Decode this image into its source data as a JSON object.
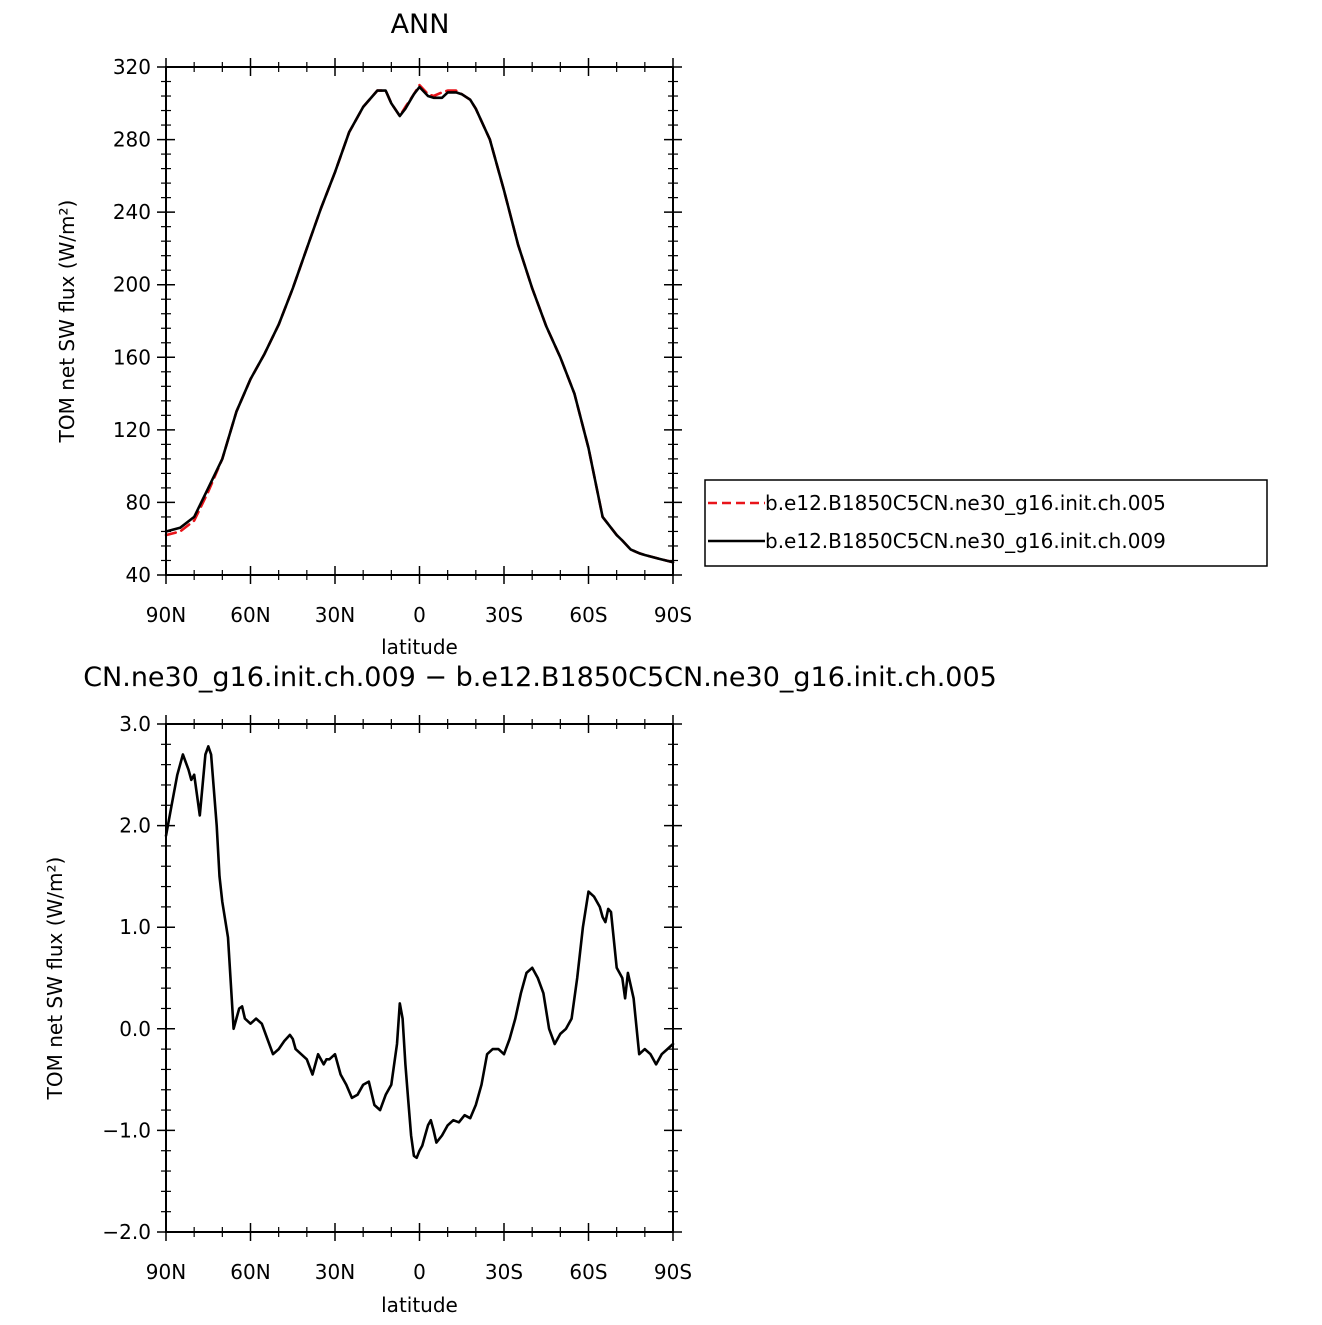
{
  "chart_data": [
    {
      "type": "line",
      "title": "ANN",
      "xlabel": "latitude",
      "ylabel": "TOM net SW flux (W/m²)",
      "ylim": [
        40,
        320
      ],
      "xlim": [
        90,
        -90
      ],
      "x_tick_values": [
        90,
        60,
        30,
        0,
        -30,
        -60,
        -90
      ],
      "x_tick_labels": [
        "90N",
        "60N",
        "30N",
        "0",
        "30S",
        "60S",
        "90S"
      ],
      "y_tick_values": [
        40,
        80,
        120,
        160,
        200,
        240,
        280,
        320
      ],
      "y_tick_labels": [
        "40",
        "80",
        "120",
        "160",
        "200",
        "240",
        "280",
        "320"
      ],
      "grid": false,
      "legend": "right",
      "series": [
        {
          "name": "b.e12.B1850C5CN.ne30_g16.init.ch.005",
          "color": "#e8141a",
          "dash": "dashed",
          "x": [
            90,
            85,
            80,
            75,
            70,
            65,
            60,
            55,
            50,
            45,
            40,
            35,
            30,
            25,
            20,
            15,
            12,
            10,
            7,
            5,
            2,
            0,
            -3,
            -5,
            -8,
            -10,
            -13,
            -15,
            -18,
            -20,
            -25,
            -30,
            -35,
            -40,
            -45,
            -50,
            -55,
            -60,
            -65,
            -70,
            -72,
            -75,
            -78,
            -80,
            -85,
            -90
          ],
          "y": [
            62,
            64,
            70,
            86,
            104,
            130,
            148,
            162,
            178,
            198,
            220,
            242,
            262,
            284,
            298,
            307,
            307,
            300,
            293,
            298,
            305,
            310,
            305,
            304,
            306,
            307,
            307,
            305,
            302,
            297,
            280,
            252,
            222,
            198,
            177,
            160,
            140,
            110,
            72,
            62,
            59,
            54,
            52,
            51,
            49,
            47
          ]
        },
        {
          "name": "b.e12.B1850C5CN.ne30_g16.init.ch.009",
          "color": "#000000",
          "dash": "solid",
          "x": [
            90,
            85,
            80,
            75,
            70,
            65,
            60,
            55,
            50,
            45,
            40,
            35,
            30,
            25,
            20,
            15,
            12,
            10,
            7,
            5,
            2,
            0,
            -3,
            -5,
            -8,
            -10,
            -13,
            -15,
            -18,
            -20,
            -25,
            -30,
            -35,
            -40,
            -45,
            -50,
            -55,
            -60,
            -65,
            -70,
            -72,
            -75,
            -78,
            -80,
            -85,
            -90
          ],
          "y": [
            64,
            66,
            72,
            88,
            104,
            130,
            148,
            162,
            178,
            198,
            220,
            242,
            262,
            284,
            298,
            307,
            307,
            300,
            293,
            297,
            305,
            309,
            304,
            303,
            303,
            306,
            306,
            305,
            302,
            297,
            280,
            252,
            222,
            198,
            177,
            160,
            140,
            110,
            72,
            62,
            59,
            54,
            52,
            51,
            49,
            47
          ]
        }
      ]
    },
    {
      "type": "line",
      "title": "CN.ne30_g16.init.ch.009 − b.e12.B1850C5CN.ne30_g16.init.ch.005",
      "xlabel": "latitude",
      "ylabel": "TOM net SW flux (W/m²)",
      "ylim": [
        -2.0,
        3.0
      ],
      "xlim": [
        90,
        -90
      ],
      "x_tick_values": [
        90,
        60,
        30,
        0,
        -30,
        -60,
        -90
      ],
      "x_tick_labels": [
        "90N",
        "60N",
        "30N",
        "0",
        "30S",
        "60S",
        "90S"
      ],
      "y_tick_values": [
        -2.0,
        -1.0,
        0.0,
        1.0,
        2.0,
        3.0
      ],
      "y_tick_labels": [
        "−2.0",
        "−1.0",
        "0.0",
        "1.0",
        "2.0",
        "3.0"
      ],
      "grid": false,
      "series": [
        {
          "color": "#000000",
          "x": [
            90,
            88,
            86,
            84,
            82,
            81,
            80,
            79,
            78,
            77,
            76,
            75,
            74,
            72,
            71,
            70,
            68,
            66,
            65,
            64,
            63,
            62,
            60,
            58,
            56,
            54,
            52,
            50,
            48,
            46,
            45,
            44,
            42,
            40,
            38,
            37,
            36,
            34,
            33,
            32,
            30,
            28,
            26,
            24,
            22,
            20,
            18,
            16,
            14,
            12,
            10,
            8,
            7,
            6,
            5,
            4,
            3,
            2,
            1,
            0,
            -1,
            -2,
            -3,
            -4,
            -5,
            -6,
            -8,
            -10,
            -12,
            -14,
            -16,
            -18,
            -20,
            -22,
            -24,
            -26,
            -28,
            -30,
            -32,
            -34,
            -36,
            -38,
            -40,
            -42,
            -44,
            -46,
            -48,
            -50,
            -52,
            -54,
            -56,
            -58,
            -60,
            -62,
            -64,
            -65,
            -66,
            -67,
            -68,
            -70,
            -71,
            -72,
            -73,
            -74,
            -76,
            -78,
            -80,
            -82,
            -84,
            -86,
            -88,
            -90
          ],
          "y": [
            1.9,
            2.2,
            2.5,
            2.7,
            2.55,
            2.45,
            2.5,
            2.3,
            2.1,
            2.4,
            2.7,
            2.78,
            2.7,
            2.0,
            1.5,
            1.25,
            0.9,
            0.0,
            0.1,
            0.2,
            0.22,
            0.1,
            0.05,
            0.1,
            0.05,
            -0.1,
            -0.25,
            -0.2,
            -0.12,
            -0.06,
            -0.1,
            -0.2,
            -0.25,
            -0.3,
            -0.45,
            -0.35,
            -0.25,
            -0.35,
            -0.3,
            -0.3,
            -0.25,
            -0.45,
            -0.55,
            -0.68,
            -0.65,
            -0.55,
            -0.52,
            -0.75,
            -0.8,
            -0.65,
            -0.55,
            -0.15,
            0.25,
            0.1,
            -0.35,
            -0.7,
            -1.05,
            -1.25,
            -1.27,
            -1.2,
            -1.15,
            -1.05,
            -0.95,
            -0.9,
            -1.0,
            -1.12,
            -1.05,
            -0.95,
            -0.9,
            -0.92,
            -0.85,
            -0.88,
            -0.75,
            -0.55,
            -0.25,
            -0.2,
            -0.2,
            -0.25,
            -0.1,
            0.1,
            0.35,
            0.55,
            0.6,
            0.5,
            0.35,
            0.0,
            -0.15,
            -0.05,
            0.0,
            0.1,
            0.5,
            1.0,
            1.35,
            1.3,
            1.2,
            1.1,
            1.05,
            1.18,
            1.15,
            0.6,
            0.55,
            0.5,
            0.3,
            0.55,
            0.3,
            -0.25,
            -0.2,
            -0.25,
            -0.35,
            -0.25,
            -0.2,
            -0.15
          ]
        }
      ]
    }
  ]
}
